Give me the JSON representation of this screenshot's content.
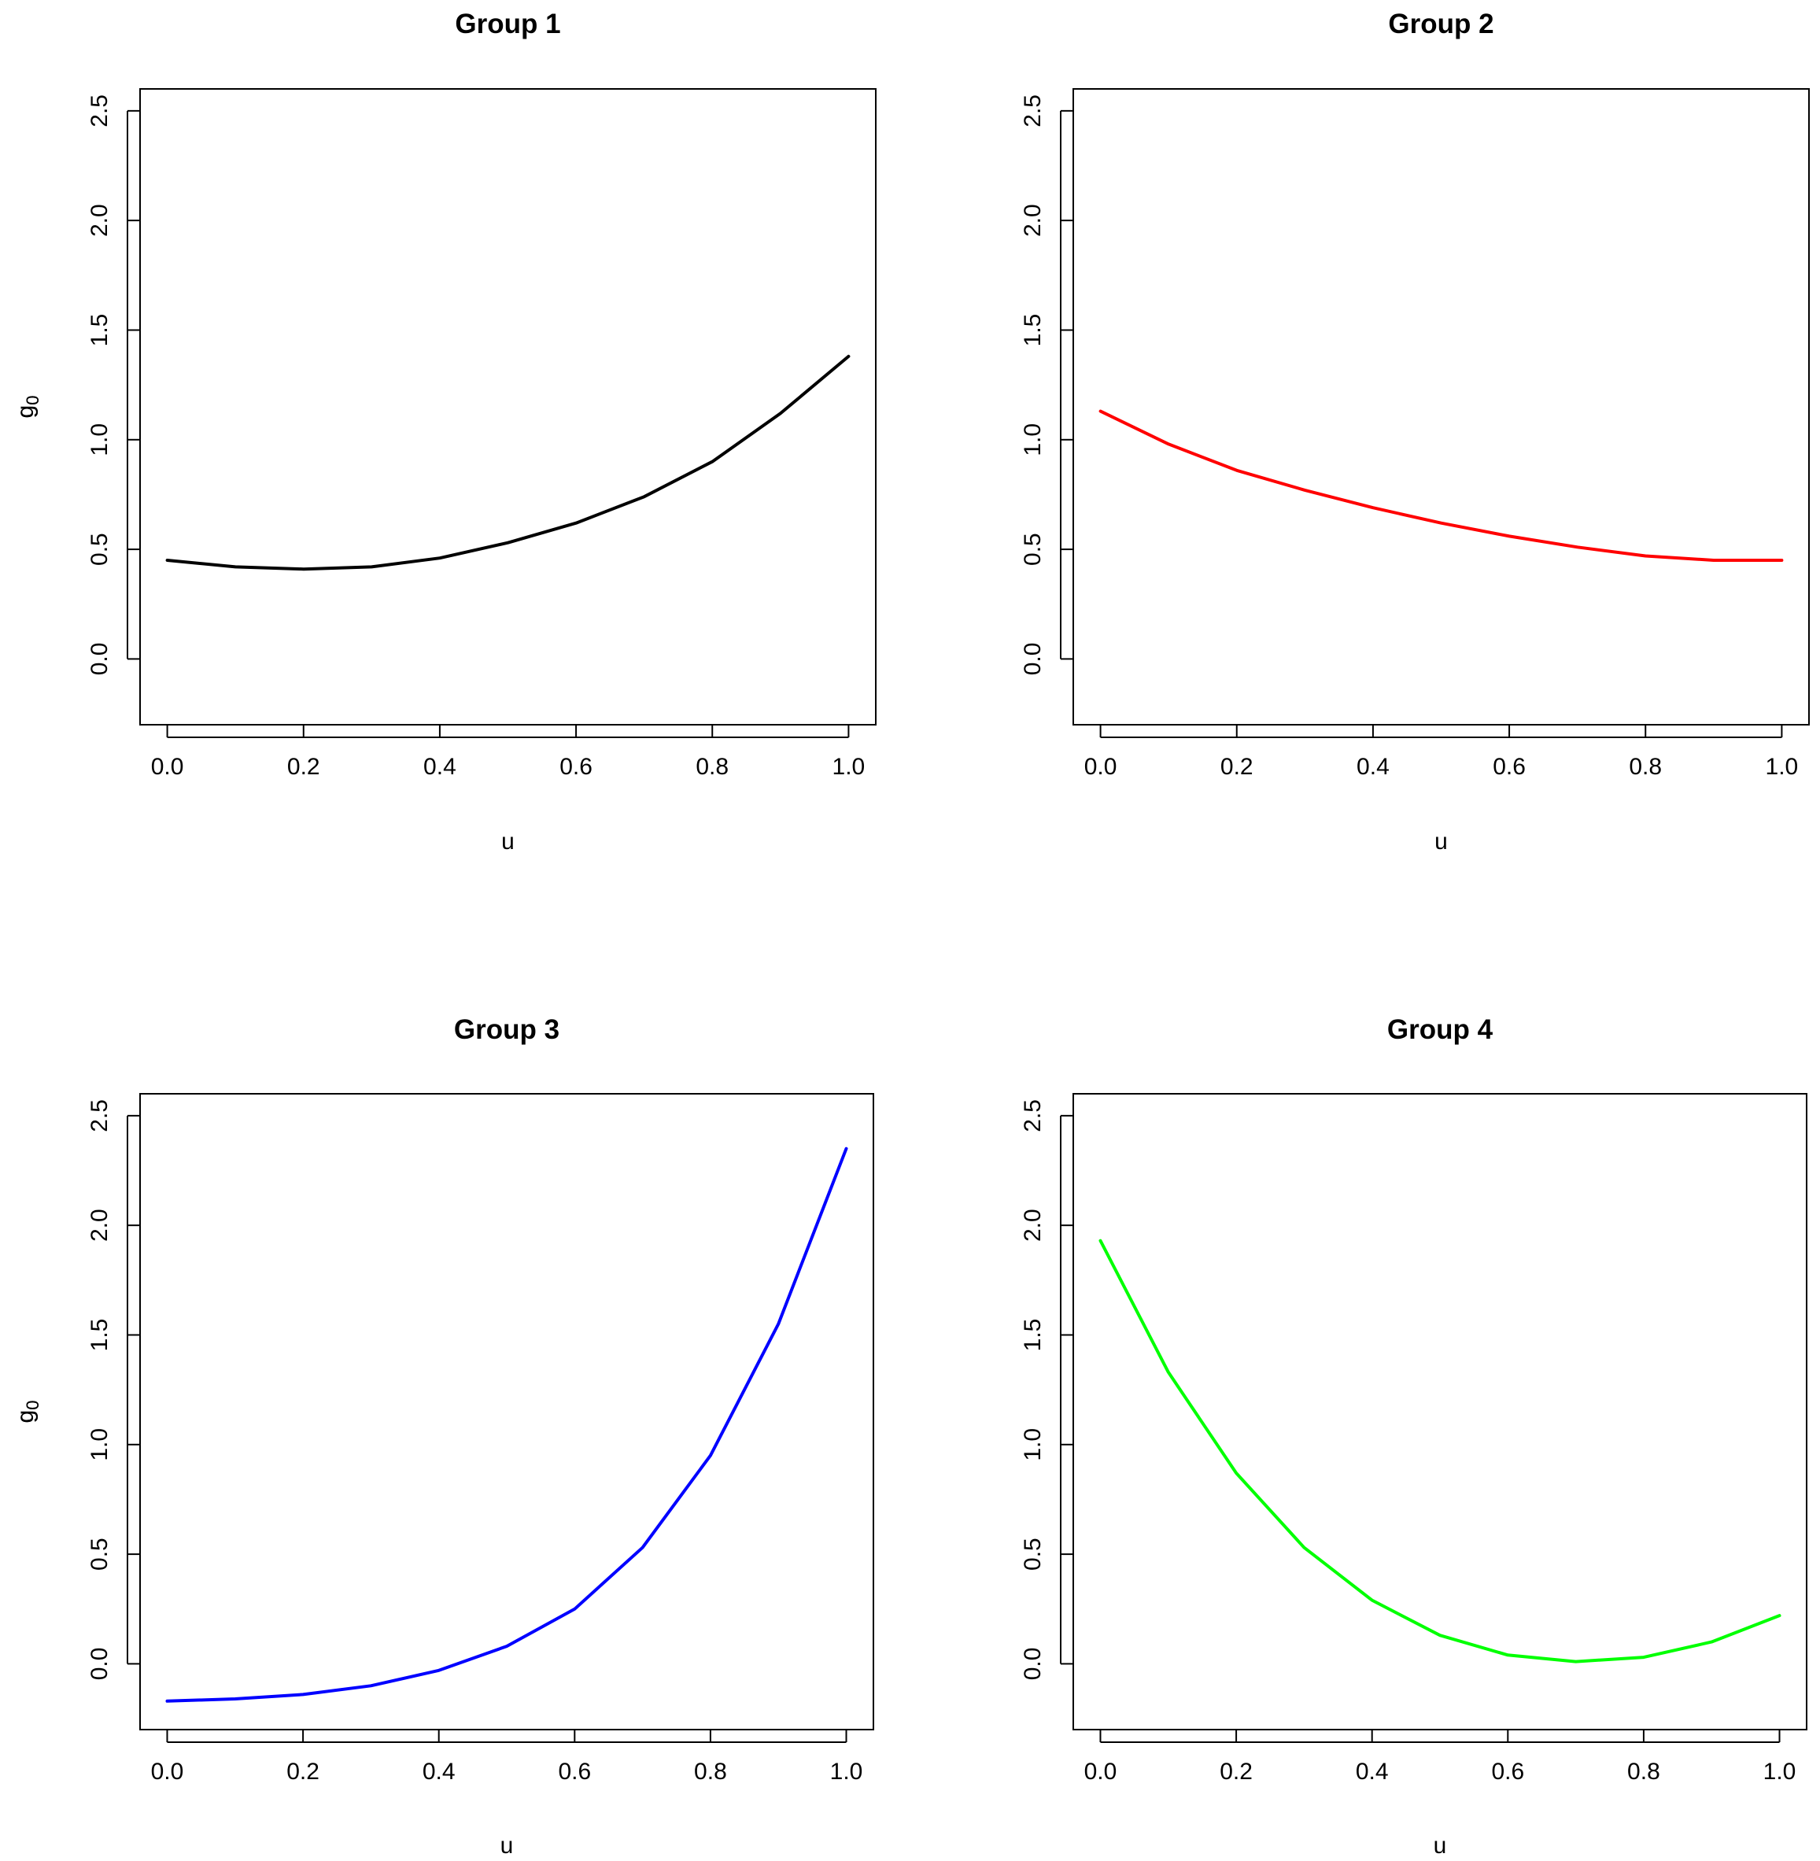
{
  "chart_data": [
    {
      "type": "line",
      "title": "Group 1",
      "xlabel": "u",
      "ylabel": "g",
      "ylabel_sub": "0",
      "xlim": [
        0,
        1
      ],
      "ylim": [
        -0.3,
        2.6
      ],
      "xticks": [
        "0.0",
        "0.2",
        "0.4",
        "0.6",
        "0.8",
        "1.0"
      ],
      "yticks": [
        "0.0",
        "0.5",
        "1.0",
        "1.5",
        "2.0",
        "2.5"
      ],
      "series": [
        {
          "color": "#000000",
          "x": [
            0,
            0.1,
            0.2,
            0.3,
            0.4,
            0.5,
            0.6,
            0.7,
            0.8,
            0.9,
            1.0
          ],
          "y": [
            0.45,
            0.42,
            0.41,
            0.42,
            0.46,
            0.53,
            0.62,
            0.74,
            0.9,
            1.12,
            1.38
          ]
        }
      ]
    },
    {
      "type": "line",
      "title": "Group 2",
      "xlabel": "u",
      "ylabel": "g",
      "ylabel_sub": "0",
      "xlim": [
        0,
        1
      ],
      "ylim": [
        -0.3,
        2.6
      ],
      "xticks": [
        "0.0",
        "0.2",
        "0.4",
        "0.6",
        "0.8",
        "1.0"
      ],
      "yticks": [
        "0.0",
        "0.5",
        "1.0",
        "1.5",
        "2.0",
        "2.5"
      ],
      "series": [
        {
          "color": "#ff0000",
          "x": [
            0,
            0.1,
            0.2,
            0.3,
            0.4,
            0.5,
            0.6,
            0.7,
            0.8,
            0.9,
            1.0
          ],
          "y": [
            1.13,
            0.98,
            0.86,
            0.77,
            0.69,
            0.62,
            0.56,
            0.51,
            0.47,
            0.45,
            0.45
          ]
        }
      ]
    },
    {
      "type": "line",
      "title": "Group 3",
      "xlabel": "u",
      "ylabel": "g",
      "ylabel_sub": "0",
      "xlim": [
        0,
        1
      ],
      "ylim": [
        -0.3,
        2.6
      ],
      "xticks": [
        "0.0",
        "0.2",
        "0.4",
        "0.6",
        "0.8",
        "1.0"
      ],
      "yticks": [
        "0.0",
        "0.5",
        "1.0",
        "1.5",
        "2.0",
        "2.5"
      ],
      "series": [
        {
          "color": "#0000ff",
          "x": [
            0,
            0.1,
            0.2,
            0.3,
            0.4,
            0.5,
            0.6,
            0.7,
            0.8,
            0.9,
            1.0
          ],
          "y": [
            -0.17,
            -0.16,
            -0.14,
            -0.1,
            -0.03,
            0.08,
            0.25,
            0.53,
            0.95,
            1.55,
            2.35
          ]
        }
      ]
    },
    {
      "type": "line",
      "title": "Group 4",
      "xlabel": "u",
      "ylabel": "g",
      "ylabel_sub": "0",
      "xlim": [
        0,
        1
      ],
      "ylim": [
        -0.3,
        2.6
      ],
      "xticks": [
        "0.0",
        "0.2",
        "0.4",
        "0.6",
        "0.8",
        "1.0"
      ],
      "yticks": [
        "0.0",
        "0.5",
        "1.0",
        "1.5",
        "2.0",
        "2.5"
      ],
      "series": [
        {
          "color": "#00ff00",
          "x": [
            0,
            0.1,
            0.2,
            0.3,
            0.4,
            0.5,
            0.6,
            0.7,
            0.8,
            0.9,
            1.0
          ],
          "y": [
            1.93,
            1.33,
            0.87,
            0.53,
            0.29,
            0.13,
            0.04,
            0.01,
            0.03,
            0.1,
            0.22
          ]
        }
      ]
    }
  ]
}
